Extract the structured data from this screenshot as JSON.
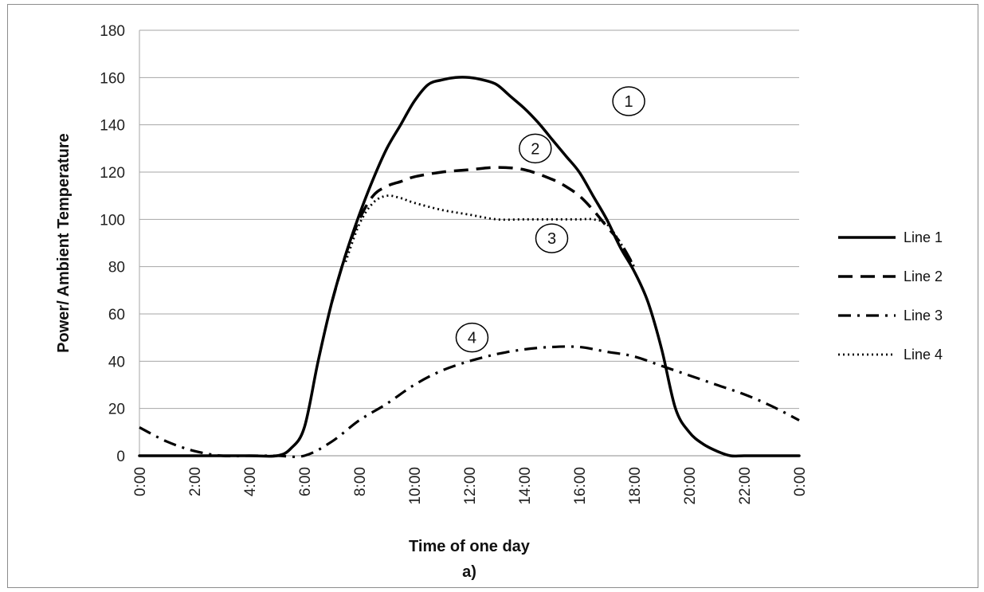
{
  "chart_data": {
    "type": "line",
    "title": "",
    "xlabel": "Time of one day",
    "ylabel": "Power/ Ambient Temperature",
    "caption": "a)",
    "xlim": [
      0,
      24
    ],
    "ylim": [
      0,
      180
    ],
    "yticks": [
      "0",
      "20",
      "40",
      "60",
      "80",
      "100",
      "120",
      "140",
      "160",
      "180"
    ],
    "xticks": [
      "0:00",
      "2:00",
      "4:00",
      "6:00",
      "8:00",
      "10:00",
      "12:00",
      "14:00",
      "16:00",
      "18:00",
      "20:00",
      "22:00",
      "0:00"
    ],
    "grid": "horizontal",
    "legend_position": "right",
    "series": [
      {
        "name": "Line 1",
        "style": "solid",
        "x": [
          0,
          2,
          4,
          5,
          5.5,
          6,
          6.5,
          7,
          7.5,
          8,
          8.5,
          9,
          9.5,
          10,
          10.5,
          11,
          11.5,
          12,
          12.5,
          13,
          13.5,
          14,
          14.5,
          15,
          15.5,
          16,
          16.5,
          17,
          17.5,
          18,
          18.5,
          19,
          19.5,
          20,
          20.5,
          21,
          21.5,
          22,
          23,
          24
        ],
        "y": [
          0,
          0,
          0,
          0,
          3,
          12,
          40,
          65,
          85,
          102,
          117,
          130,
          140,
          150,
          157,
          159,
          160,
          160,
          159,
          157,
          152,
          147,
          141,
          134,
          127,
          120,
          110,
          100,
          88,
          78,
          65,
          45,
          20,
          10,
          5,
          2,
          0,
          0,
          0,
          0
        ]
      },
      {
        "name": "Line 2",
        "style": "dashed",
        "x": [
          7,
          7.5,
          8,
          8.5,
          9,
          9.5,
          10,
          11,
          12,
          13,
          14,
          15,
          15.5,
          16,
          16.5,
          17,
          17.5,
          18
        ],
        "y": [
          65,
          85,
          100,
          110,
          114,
          116,
          118,
          120,
          121,
          122,
          121,
          117,
          114,
          110,
          104,
          97,
          90,
          80
        ]
      },
      {
        "name": "Line 3",
        "style": "dashdot",
        "x": [
          0,
          1,
          2,
          3,
          4,
          5,
          6,
          7,
          8,
          9,
          10,
          11,
          12,
          13,
          14,
          15,
          16,
          17,
          18,
          19,
          20,
          21,
          22,
          23,
          24
        ],
        "y": [
          12,
          6,
          2,
          0,
          0,
          0,
          0,
          6,
          15,
          22,
          30,
          36,
          40,
          43,
          45,
          46,
          46,
          44,
          42,
          38,
          34,
          30,
          26,
          21,
          15
        ]
      },
      {
        "name": "Line 4",
        "style": "dotted",
        "x": [
          7.5,
          8,
          8.5,
          9,
          9.5,
          10,
          11,
          12,
          13,
          14,
          15,
          15.5,
          16,
          16.5,
          17,
          17.5,
          18
        ],
        "y": [
          82,
          98,
          107,
          110,
          109,
          107,
          104,
          102,
          100,
          100,
          100,
          100,
          100,
          100,
          98,
          90,
          80
        ]
      }
    ],
    "annotations": [
      {
        "text": "1",
        "x": 17.8,
        "y": 150
      },
      {
        "text": "2",
        "x": 14.4,
        "y": 130
      },
      {
        "text": "3",
        "x": 15.0,
        "y": 92
      },
      {
        "text": "4",
        "x": 12.1,
        "y": 50
      }
    ]
  }
}
